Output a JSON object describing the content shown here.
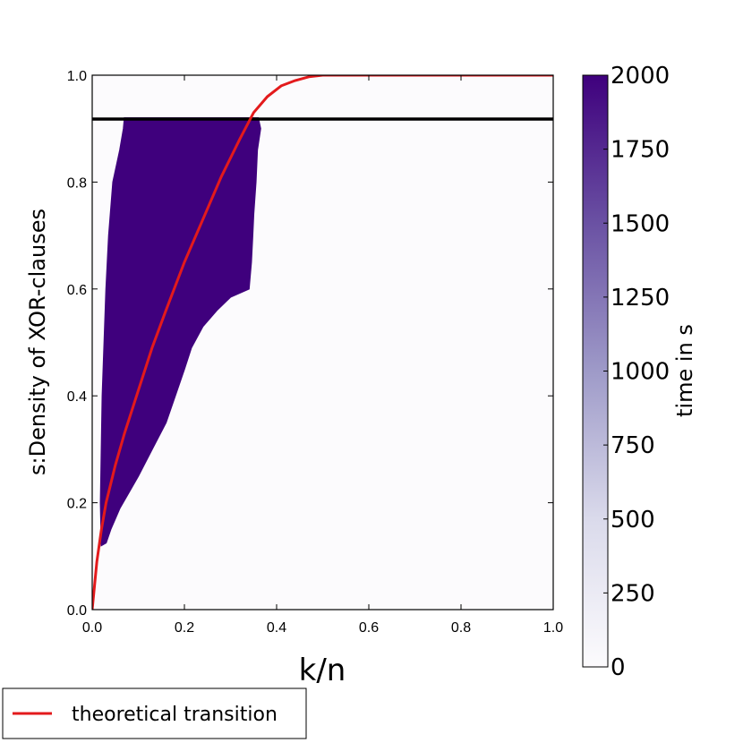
{
  "chart_data": {
    "type": "heatmap",
    "title": "",
    "xlabel": "k/n",
    "ylabel": "s:Density of XOR-clauses",
    "xlim": [
      0.0,
      1.0
    ],
    "ylim": [
      0.0,
      1.0
    ],
    "x_ticks": [
      "0.0",
      "0.2",
      "0.4",
      "0.6",
      "0.8",
      "1.0"
    ],
    "y_ticks": [
      "0.0",
      "0.2",
      "0.4",
      "0.6",
      "0.8",
      "1.0"
    ],
    "grid": false,
    "colorbar": {
      "label": "time in s",
      "range": [
        0,
        2000
      ],
      "ticks": [
        "0",
        "250",
        "500",
        "750",
        "1000",
        "1250",
        "1500",
        "1750",
        "2000"
      ],
      "color_low": "#fcfbfd",
      "color_high": "#3f007d"
    },
    "region_high_time": {
      "value": 2000,
      "color": "#3f007d",
      "description_points_left": [
        [
          0.02,
          0.12
        ],
        [
          0.018,
          0.2
        ],
        [
          0.02,
          0.3
        ],
        [
          0.022,
          0.4
        ],
        [
          0.03,
          0.6
        ],
        [
          0.036,
          0.7
        ],
        [
          0.045,
          0.8
        ],
        [
          0.06,
          0.86
        ],
        [
          0.068,
          0.9
        ],
        [
          0.07,
          0.92
        ]
      ],
      "description_points_right": [
        [
          0.36,
          0.92
        ],
        [
          0.365,
          0.9
        ],
        [
          0.358,
          0.86
        ],
        [
          0.355,
          0.8
        ],
        [
          0.35,
          0.74
        ],
        [
          0.348,
          0.7
        ],
        [
          0.345,
          0.65
        ],
        [
          0.34,
          0.6
        ],
        [
          0.3,
          0.585
        ],
        [
          0.27,
          0.56
        ],
        [
          0.24,
          0.53
        ],
        [
          0.215,
          0.49
        ],
        [
          0.2,
          0.45
        ],
        [
          0.18,
          0.4
        ],
        [
          0.16,
          0.35
        ],
        [
          0.13,
          0.3
        ],
        [
          0.1,
          0.25
        ],
        [
          0.08,
          0.22
        ],
        [
          0.06,
          0.19
        ],
        [
          0.04,
          0.15
        ],
        [
          0.03,
          0.125
        ]
      ]
    },
    "reference_lines": [
      {
        "name": "",
        "orientation": "horizontal",
        "y": 0.918,
        "color": "#000000"
      }
    ],
    "series": [
      {
        "name": "theoretical transition",
        "color": "#e31a1c",
        "x": [
          0.0,
          0.01,
          0.02,
          0.03,
          0.05,
          0.07,
          0.1,
          0.13,
          0.16,
          0.2,
          0.24,
          0.28,
          0.32,
          0.35,
          0.38,
          0.41,
          0.44,
          0.47,
          0.5,
          0.53,
          0.56,
          0.6,
          0.7,
          0.8,
          0.9,
          1.0
        ],
        "y": [
          0.0,
          0.09,
          0.15,
          0.2,
          0.27,
          0.33,
          0.41,
          0.49,
          0.56,
          0.65,
          0.73,
          0.81,
          0.88,
          0.93,
          0.96,
          0.98,
          0.99,
          0.997,
          1.0,
          1.0,
          1.0,
          1.0,
          1.0,
          1.0,
          1.0,
          1.0
        ]
      }
    ],
    "legend": {
      "placement": "bottom-left",
      "entries": [
        "theoretical transition"
      ]
    }
  }
}
